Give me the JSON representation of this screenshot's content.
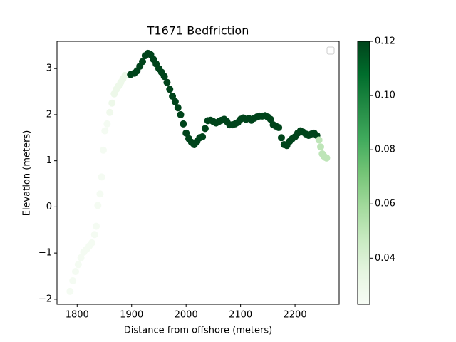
{
  "chart_data": {
    "type": "scatter",
    "title": "T1671 Bedfriction",
    "xlabel": "Distance from offshore (meters)",
    "ylabel": "Elevation (meters)",
    "x": [
      1787,
      1792,
      1797,
      1802,
      1807,
      1812,
      1817,
      1822,
      1827,
      1832,
      1835,
      1838,
      1842,
      1845,
      1848,
      1851,
      1855,
      1860,
      1864,
      1868,
      1872,
      1876,
      1880,
      1884,
      1888,
      1898,
      1905,
      1910,
      1915,
      1920,
      1925,
      1930,
      1935,
      1940,
      1945,
      1950,
      1955,
      1960,
      1965,
      1970,
      1975,
      1980,
      1985,
      1990,
      1995,
      2000,
      2005,
      2010,
      2015,
      2020,
      2025,
      2030,
      2035,
      2040,
      2045,
      2050,
      2055,
      2060,
      2065,
      2070,
      2075,
      2080,
      2085,
      2090,
      2095,
      2100,
      2105,
      2110,
      2115,
      2120,
      2125,
      2130,
      2135,
      2140,
      2145,
      2150,
      2155,
      2160,
      2165,
      2170,
      2175,
      2180,
      2185,
      2190,
      2195,
      2200,
      2205,
      2210,
      2215,
      2220,
      2225,
      2230,
      2235,
      2240,
      2244,
      2247,
      2250,
      2253,
      2256,
      2258
    ],
    "y": [
      -1.83,
      -1.6,
      -1.4,
      -1.25,
      -1.1,
      -0.98,
      -0.92,
      -0.85,
      -0.78,
      -0.6,
      -0.42,
      0.03,
      0.28,
      0.65,
      1.23,
      1.65,
      1.8,
      2.05,
      2.25,
      2.45,
      2.55,
      2.62,
      2.7,
      2.78,
      2.85,
      2.87,
      2.9,
      2.95,
      3.05,
      3.15,
      3.28,
      3.33,
      3.3,
      3.2,
      3.1,
      3.0,
      2.92,
      2.83,
      2.7,
      2.55,
      2.4,
      2.28,
      2.15,
      2.0,
      1.8,
      1.6,
      1.48,
      1.4,
      1.35,
      1.42,
      1.5,
      1.52,
      1.7,
      1.87,
      1.88,
      1.85,
      1.82,
      1.85,
      1.88,
      1.9,
      1.85,
      1.78,
      1.78,
      1.8,
      1.83,
      1.9,
      1.93,
      1.9,
      1.92,
      1.88,
      1.92,
      1.95,
      1.97,
      1.97,
      1.98,
      1.95,
      1.9,
      1.78,
      1.75,
      1.72,
      1.5,
      1.35,
      1.33,
      1.42,
      1.48,
      1.52,
      1.6,
      1.65,
      1.62,
      1.58,
      1.55,
      1.58,
      1.6,
      1.55,
      1.45,
      1.3,
      1.15,
      1.1,
      1.07,
      1.06
    ],
    "c": [
      0.025,
      0.025,
      0.025,
      0.025,
      0.025,
      0.025,
      0.025,
      0.025,
      0.025,
      0.025,
      0.025,
      0.025,
      0.025,
      0.025,
      0.025,
      0.025,
      0.025,
      0.028,
      0.03,
      0.03,
      0.03,
      0.03,
      0.03,
      0.03,
      0.03,
      0.12,
      0.12,
      0.12,
      0.12,
      0.12,
      0.12,
      0.12,
      0.12,
      0.12,
      0.12,
      0.12,
      0.12,
      0.12,
      0.12,
      0.12,
      0.12,
      0.12,
      0.12,
      0.12,
      0.12,
      0.12,
      0.12,
      0.12,
      0.12,
      0.12,
      0.12,
      0.12,
      0.12,
      0.12,
      0.12,
      0.12,
      0.12,
      0.12,
      0.12,
      0.12,
      0.12,
      0.12,
      0.12,
      0.12,
      0.12,
      0.12,
      0.12,
      0.12,
      0.12,
      0.12,
      0.12,
      0.12,
      0.12,
      0.12,
      0.12,
      0.12,
      0.12,
      0.12,
      0.12,
      0.12,
      0.12,
      0.12,
      0.12,
      0.12,
      0.12,
      0.12,
      0.12,
      0.12,
      0.12,
      0.12,
      0.12,
      0.12,
      0.12,
      0.12,
      0.05,
      0.05,
      0.05,
      0.05,
      0.05,
      0.05
    ],
    "colormap": "Greens",
    "xlim": [
      1763,
      2281
    ],
    "ylim": [
      -2.11,
      3.59
    ],
    "xticks": [
      1800,
      1900,
      2000,
      2100,
      2200
    ],
    "yticks": [
      {
        "value": -2,
        "label": "−2"
      },
      {
        "value": -1,
        "label": "−1"
      },
      0,
      1,
      2,
      3
    ],
    "clim": [
      0.023,
      0.12
    ],
    "cticks": [
      0.04,
      0.06,
      0.08,
      {
        "value": 0.1,
        "label": "0.10"
      },
      0.12
    ],
    "legend": "upper right"
  }
}
